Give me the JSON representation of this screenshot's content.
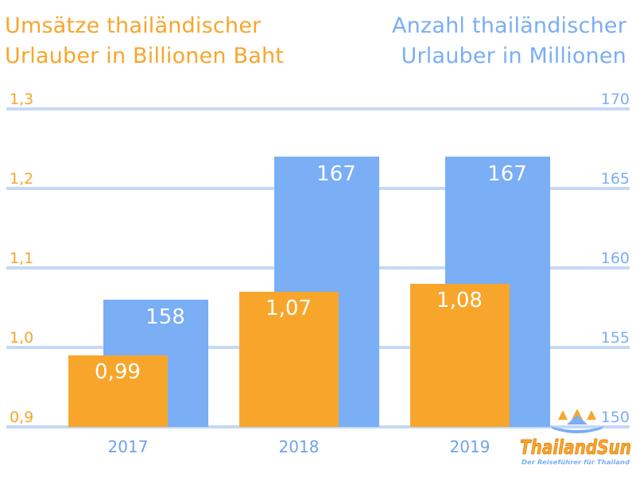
{
  "chart_data": {
    "type": "bar",
    "categories": [
      "2017",
      "2018",
      "2019"
    ],
    "left_axis": {
      "title_lines": [
        "Umsätze thailändischer",
        "Urlauber in Billionen Baht"
      ],
      "ticks": [
        "0,9",
        "1,0",
        "1,1",
        "1,2",
        "1,3"
      ],
      "range": [
        0.9,
        1.3
      ],
      "color": "#f7a62b"
    },
    "right_axis": {
      "title_lines": [
        "Anzahl thailändischer",
        "Urlauber in Millionen"
      ],
      "ticks": [
        "150",
        "155",
        "160",
        "165",
        "170"
      ],
      "range": [
        150,
        170
      ],
      "color": "#7aaef5"
    },
    "series": [
      {
        "axis": "right",
        "color": "#7aaef5",
        "values": [
          158,
          167,
          167
        ],
        "labels": [
          "158",
          "167",
          "167"
        ]
      },
      {
        "axis": "left",
        "color": "#f7a62b",
        "values": [
          0.99,
          1.07,
          1.08
        ],
        "labels": [
          "0,99",
          "1,07",
          "1,08"
        ]
      }
    ],
    "grid": true,
    "grid_color": "#c5d9f5"
  },
  "logo": {
    "name": "ThailandSun",
    "tagline": "Der Reiseführer für Thailand"
  }
}
